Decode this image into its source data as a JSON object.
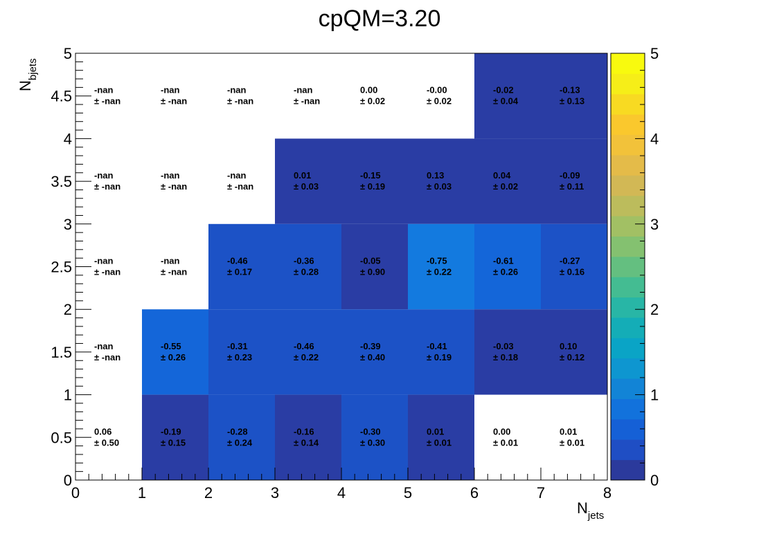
{
  "chart_data": {
    "type": "heatmap",
    "title": "cpQM=3.20",
    "xlabel": {
      "main": "N",
      "sub": "jets"
    },
    "ylabel": {
      "main": "N",
      "sub": "bjets"
    },
    "xlim": [
      0,
      8
    ],
    "ylim": [
      0,
      5
    ],
    "x_ticks": [
      "0",
      "1",
      "2",
      "3",
      "4",
      "5",
      "6",
      "7",
      "8"
    ],
    "y_ticks": [
      "0",
      "0.5",
      "1",
      "1.5",
      "2",
      "2.5",
      "3",
      "3.5",
      "4",
      "4.5",
      "5"
    ],
    "z_range": [
      0,
      5
    ],
    "z_ticks": [
      "0",
      "1",
      "2",
      "3",
      "4",
      "5"
    ],
    "palette": [
      "#2b3a9c",
      "#1f4ec4",
      "#1560d6",
      "#1272dc",
      "#1284d6",
      "#0e96d0",
      "#0aa4c6",
      "#14adb7",
      "#28b6a6",
      "#44bc92",
      "#64bf80",
      "#84c170",
      "#a2c064",
      "#bcbc5c",
      "#d2b855",
      "#e4bb49",
      "#f2c23a",
      "#fac82d",
      "#f8da22",
      "#f6ee18",
      "#f8fa0e"
    ],
    "cells": [
      {
        "x": [
          0,
          1
        ],
        "y": [
          4,
          5
        ],
        "value": "-nan",
        "error": "± -nan",
        "color": null
      },
      {
        "x": [
          1,
          2
        ],
        "y": [
          4,
          5
        ],
        "value": "-nan",
        "error": "± -nan",
        "color": null
      },
      {
        "x": [
          2,
          3
        ],
        "y": [
          4,
          5
        ],
        "value": "-nan",
        "error": "± -nan",
        "color": null
      },
      {
        "x": [
          3,
          4
        ],
        "y": [
          4,
          5
        ],
        "value": "-nan",
        "error": "± -nan",
        "color": null
      },
      {
        "x": [
          4,
          5
        ],
        "y": [
          4,
          5
        ],
        "value": "0.00",
        "error": "± 0.02",
        "color": null
      },
      {
        "x": [
          5,
          6
        ],
        "y": [
          4,
          5
        ],
        "value": "-0.00",
        "error": "± 0.02",
        "color": null
      },
      {
        "x": [
          6,
          7
        ],
        "y": [
          4,
          5
        ],
        "value": "-0.02",
        "error": "± 0.04",
        "color": "#2a3da4"
      },
      {
        "x": [
          7,
          8
        ],
        "y": [
          4,
          5
        ],
        "value": "-0.13",
        "error": "± 0.13",
        "color": "#2a3da4"
      },
      {
        "x": [
          0,
          1
        ],
        "y": [
          3,
          4
        ],
        "value": "-nan",
        "error": "± -nan",
        "color": null
      },
      {
        "x": [
          1,
          2
        ],
        "y": [
          3,
          4
        ],
        "value": "-nan",
        "error": "± -nan",
        "color": null
      },
      {
        "x": [
          2,
          3
        ],
        "y": [
          3,
          4
        ],
        "value": "-nan",
        "error": "± -nan",
        "color": null
      },
      {
        "x": [
          3,
          4
        ],
        "y": [
          3,
          4
        ],
        "value": "0.01",
        "error": "± 0.03",
        "color": "#2a3da4"
      },
      {
        "x": [
          4,
          5
        ],
        "y": [
          3,
          4
        ],
        "value": "-0.15",
        "error": "± 0.19",
        "color": "#2a3da4"
      },
      {
        "x": [
          5,
          6
        ],
        "y": [
          3,
          4
        ],
        "value": "0.13",
        "error": "± 0.03",
        "color": "#2a3da4"
      },
      {
        "x": [
          6,
          7
        ],
        "y": [
          3,
          4
        ],
        "value": "0.04",
        "error": "± 0.02",
        "color": "#2a3da4"
      },
      {
        "x": [
          7,
          8
        ],
        "y": [
          3,
          4
        ],
        "value": "-0.09",
        "error": "± 0.11",
        "color": "#2a3da4"
      },
      {
        "x": [
          0,
          1
        ],
        "y": [
          2,
          3
        ],
        "value": "-nan",
        "error": "± -nan",
        "color": null
      },
      {
        "x": [
          1,
          2
        ],
        "y": [
          2,
          3
        ],
        "value": "-nan",
        "error": "± -nan",
        "color": null
      },
      {
        "x": [
          2,
          3
        ],
        "y": [
          2,
          3
        ],
        "value": "-0.46",
        "error": "± 0.17",
        "color": "#1c52c6"
      },
      {
        "x": [
          3,
          4
        ],
        "y": [
          2,
          3
        ],
        "value": "-0.36",
        "error": "± 0.28",
        "color": "#1c52c6"
      },
      {
        "x": [
          4,
          5
        ],
        "y": [
          2,
          3
        ],
        "value": "-0.05",
        "error": "± 0.90",
        "color": "#2a3da4"
      },
      {
        "x": [
          5,
          6
        ],
        "y": [
          2,
          3
        ],
        "value": "-0.75",
        "error": "± 0.22",
        "color": "#137adf"
      },
      {
        "x": [
          6,
          7
        ],
        "y": [
          2,
          3
        ],
        "value": "-0.61",
        "error": "± 0.26",
        "color": "#1466d9"
      },
      {
        "x": [
          7,
          8
        ],
        "y": [
          2,
          3
        ],
        "value": "-0.27",
        "error": "± 0.16",
        "color": "#1c52c6"
      },
      {
        "x": [
          0,
          1
        ],
        "y": [
          1,
          2
        ],
        "value": "-nan",
        "error": "± -nan",
        "color": null
      },
      {
        "x": [
          1,
          2
        ],
        "y": [
          1,
          2
        ],
        "value": "-0.55",
        "error": "± 0.26",
        "color": "#1466d9"
      },
      {
        "x": [
          2,
          3
        ],
        "y": [
          1,
          2
        ],
        "value": "-0.31",
        "error": "± 0.23",
        "color": "#1c52c6"
      },
      {
        "x": [
          3,
          4
        ],
        "y": [
          1,
          2
        ],
        "value": "-0.46",
        "error": "± 0.22",
        "color": "#1c52c6"
      },
      {
        "x": [
          4,
          5
        ],
        "y": [
          1,
          2
        ],
        "value": "-0.39",
        "error": "± 0.40",
        "color": "#1c52c6"
      },
      {
        "x": [
          5,
          6
        ],
        "y": [
          1,
          2
        ],
        "value": "-0.41",
        "error": "± 0.19",
        "color": "#1c52c6"
      },
      {
        "x": [
          6,
          7
        ],
        "y": [
          1,
          2
        ],
        "value": "-0.03",
        "error": "± 0.18",
        "color": "#2a3da4"
      },
      {
        "x": [
          7,
          8
        ],
        "y": [
          1,
          2
        ],
        "value": "0.10",
        "error": "± 0.12",
        "color": "#2a3da4"
      },
      {
        "x": [
          0,
          1
        ],
        "y": [
          0,
          1
        ],
        "value": "0.06",
        "error": "± 0.50",
        "color": null
      },
      {
        "x": [
          1,
          2
        ],
        "y": [
          0,
          1
        ],
        "value": "-0.19",
        "error": "± 0.15",
        "color": "#2a3da4"
      },
      {
        "x": [
          2,
          3
        ],
        "y": [
          0,
          1
        ],
        "value": "-0.28",
        "error": "± 0.24",
        "color": "#1c52c6"
      },
      {
        "x": [
          3,
          4
        ],
        "y": [
          0,
          1
        ],
        "value": "-0.16",
        "error": "± 0.14",
        "color": "#2a3da4"
      },
      {
        "x": [
          4,
          5
        ],
        "y": [
          0,
          1
        ],
        "value": "-0.30",
        "error": "± 0.30",
        "color": "#1c52c6"
      },
      {
        "x": [
          5,
          6
        ],
        "y": [
          0,
          1
        ],
        "value": "0.01",
        "error": "± 0.01",
        "color": "#2a3da4"
      },
      {
        "x": [
          6,
          7
        ],
        "y": [
          0,
          1
        ],
        "value": "0.00",
        "error": "± 0.01",
        "color": null
      },
      {
        "x": [
          7,
          8
        ],
        "y": [
          0,
          1
        ],
        "value": "0.01",
        "error": "± 0.01",
        "color": null
      }
    ]
  }
}
